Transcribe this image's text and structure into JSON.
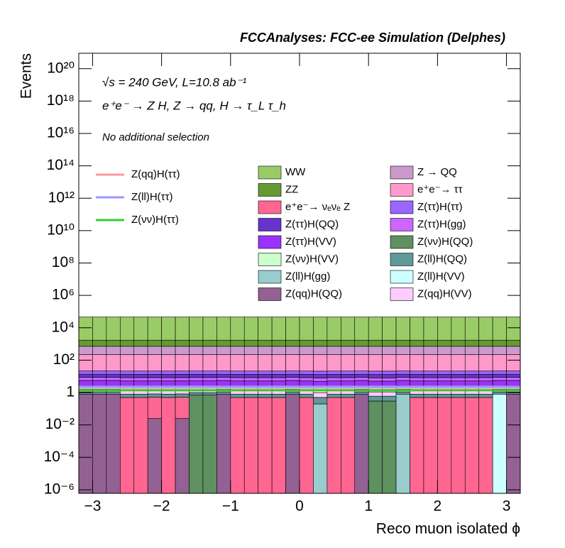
{
  "chart_data": {
    "type": "stacked_histogram",
    "title": "FCCAnalyses: FCC-ee Simulation (Delphes)",
    "annotations": [
      "√s = 240 GeV, L=10.8 ab⁻¹",
      "e⁺e⁻ → Z H, Z → qq, H → τ_L τ_h",
      "No additional selection"
    ],
    "x_label": "Reco muon isolated ϕ",
    "y_label": "Events",
    "log_y": true,
    "xlim": [
      -3.2,
      3.2
    ],
    "ylim": [
      6e-07,
      9e+20
    ],
    "xticks": [
      {
        "value": -3,
        "label": "−3"
      },
      {
        "value": -2,
        "label": "−2"
      },
      {
        "value": -1,
        "label": "−1"
      },
      0,
      1,
      2,
      3
    ],
    "yticks": [
      {
        "value": 1e-06,
        "label": "10⁻⁶"
      },
      {
        "value": 0.0001,
        "label": "10⁻⁴"
      },
      {
        "value": 0.01,
        "label": "10⁻²"
      },
      1,
      {
        "value": 100,
        "label": "10²"
      },
      {
        "value": 10000,
        "label": "10⁴"
      },
      {
        "value": 1000000.0,
        "label": "10⁶"
      },
      {
        "value": 100000000.0,
        "label": "10⁸"
      },
      {
        "value": 10000000000.0,
        "label": "10¹⁰"
      },
      {
        "value": 1000000000000.0,
        "label": "10¹²"
      },
      {
        "value": 100000000000000.0,
        "label": "10¹⁴"
      },
      {
        "value": 1e+16,
        "label": "10¹⁶"
      },
      {
        "value": 1e+18,
        "label": "10¹⁸"
      },
      {
        "value": 1e+20,
        "label": "10²⁰"
      }
    ],
    "bins": [
      -3.2,
      -3,
      -2.8,
      -2.6,
      -2.4,
      -2.2,
      -2,
      -1.8,
      -1.6,
      -1.4,
      -1.2,
      -1,
      -0.8,
      -0.6,
      -0.4,
      -0.2,
      0,
      0.2,
      0.4,
      0.6,
      0.8,
      1,
      1.2,
      1.4,
      1.6,
      1.8,
      2,
      2.2,
      2.4,
      2.6,
      2.8,
      3,
      3.2
    ],
    "series": [
      {
        "name": "Z(qq)H(QQ)",
        "color": "#936193",
        "values": [
          0.8,
          0.8,
          0.8,
          0,
          0,
          0.025,
          0,
          0.025,
          0,
          0,
          0.8,
          0,
          0,
          0,
          0,
          0.8,
          0,
          0,
          0,
          0,
          0.8,
          0,
          0,
          0,
          0,
          0,
          0,
          0,
          0,
          0,
          0,
          0.8
        ]
      },
      {
        "name": "e⁺e⁻→ νₑνₑ Z",
        "color": "#ff6692",
        "values": [
          0,
          0,
          0,
          0.5,
          0.5,
          0.5,
          0.5,
          0.5,
          0,
          0,
          0,
          0.5,
          0.5,
          0.5,
          0.5,
          0,
          0.5,
          0,
          0.5,
          0.5,
          0,
          0,
          0,
          0,
          0.5,
          0.5,
          0.5,
          0.5,
          0.5,
          0.5,
          0,
          0
        ]
      },
      {
        "name": "Z(νν)H(QQ)",
        "color": "#5f9060",
        "values": [
          0,
          0,
          0,
          0,
          0,
          0,
          0,
          0,
          0.7,
          0.7,
          0,
          0,
          0,
          0,
          0,
          0,
          0,
          0,
          0,
          0,
          0,
          0.3,
          0.3,
          0,
          0,
          0,
          0,
          0,
          0,
          0,
          0,
          0
        ]
      },
      {
        "name": "Z(ll)H(gg)",
        "color": "#99cccc",
        "values": [
          0,
          0,
          0,
          0,
          0,
          0,
          0,
          0,
          0,
          0,
          0,
          0,
          0,
          0,
          0,
          0,
          0,
          0.2,
          0,
          0,
          0,
          0,
          0,
          0.8,
          0,
          0,
          0,
          0,
          0,
          0,
          0,
          0
        ]
      },
      {
        "name": "Z(ll)H(VV)",
        "color": "#ccffff",
        "values": [
          0,
          0,
          0,
          0,
          0,
          0,
          0,
          0,
          0,
          0,
          0,
          0,
          0,
          0,
          0,
          0,
          0,
          0,
          0,
          0,
          0,
          0,
          0,
          0,
          0,
          0,
          0,
          0,
          0,
          0,
          0.8,
          0
        ]
      },
      {
        "name": "Z(ll)H(QQ)",
        "color": "#5f9999",
        "values": [
          0.3,
          0.3,
          0.3,
          0.3,
          0.3,
          0.3,
          0.3,
          0.3,
          0.3,
          0.3,
          0.3,
          0.3,
          0.3,
          0.3,
          0.3,
          0.3,
          0.3,
          0.3,
          0.3,
          0.3,
          0.3,
          0.3,
          0.3,
          0.3,
          0.3,
          0.3,
          0.3,
          0.3,
          0.3,
          0.3,
          0.3,
          0.3
        ]
      },
      {
        "name": "Z(qq)H(VV)",
        "color": "#ffccff",
        "values": [
          0.5,
          0.5,
          0.5,
          0.5,
          0.5,
          0.5,
          0.5,
          0.5,
          0.5,
          0.5,
          0.5,
          0.5,
          0.5,
          0.5,
          0.5,
          0.5,
          0.5,
          0.5,
          0.5,
          0.5,
          0.5,
          0.5,
          0.5,
          0.5,
          0.5,
          0.5,
          0.5,
          0.5,
          0.5,
          0.5,
          0.5,
          0.5
        ]
      },
      {
        "name": "Z(νν)H(VV)",
        "color": "#ccffcc",
        "values": [
          1,
          1,
          1,
          1,
          1,
          1,
          1,
          1,
          1,
          1,
          1,
          1,
          1,
          1,
          1,
          1,
          1,
          1,
          1,
          1,
          1,
          1,
          1,
          1,
          1,
          1,
          1,
          1,
          1,
          1,
          1,
          1
        ]
      },
      {
        "name": "Z(ττ)H(VV)",
        "color": "#9933ff",
        "values": [
          3,
          3,
          3,
          3,
          3,
          3,
          3,
          3,
          3,
          3,
          3,
          3,
          3,
          3,
          3,
          3,
          3,
          3,
          3,
          3,
          3,
          3,
          3,
          3,
          3,
          3,
          3,
          3,
          3,
          3,
          3,
          3
        ]
      },
      {
        "name": "Z(ττ)H(gg)",
        "color": "#cc66ff",
        "values": [
          3,
          3,
          3,
          3,
          3,
          3,
          3,
          3,
          3,
          3,
          3,
          3,
          3,
          3,
          3,
          3,
          3,
          3,
          3,
          3,
          3,
          3,
          3,
          3,
          3,
          3,
          3,
          3,
          3,
          3,
          3,
          3
        ]
      },
      {
        "name": "Z(ττ)H(QQ)",
        "color": "#6633cc",
        "values": [
          5,
          5,
          5,
          5,
          5,
          5,
          5,
          5,
          5,
          5,
          5,
          5,
          5,
          5,
          5,
          5,
          5,
          5,
          5,
          5,
          5,
          5,
          5,
          5,
          5,
          5,
          5,
          5,
          5,
          5,
          5,
          5
        ]
      },
      {
        "name": "Z(ττ)H(ττ)",
        "color": "#9966ff",
        "values": [
          8,
          8,
          8,
          8,
          8,
          8,
          8,
          8,
          8,
          8,
          8,
          8,
          8,
          8,
          8,
          8,
          8,
          8,
          8,
          8,
          8,
          8,
          8,
          8,
          8,
          8,
          8,
          8,
          8,
          8,
          8,
          8
        ]
      },
      {
        "name": "e⁺e⁻→ ττ",
        "color": "#ff99cc",
        "values": [
          200,
          200,
          200,
          200,
          200,
          200,
          200,
          200,
          200,
          200,
          200,
          200,
          200,
          200,
          200,
          200,
          200,
          200,
          200,
          200,
          200,
          200,
          200,
          200,
          200,
          200,
          200,
          200,
          200,
          200,
          200,
          200
        ]
      },
      {
        "name": "Z → QQ",
        "color": "#cc99cc",
        "values": [
          500,
          500,
          500,
          500,
          500,
          500,
          500,
          500,
          500,
          500,
          500,
          500,
          500,
          500,
          500,
          500,
          500,
          500,
          500,
          500,
          500,
          500,
          500,
          500,
          500,
          500,
          500,
          500,
          500,
          500,
          500,
          500
        ]
      },
      {
        "name": "ZZ",
        "color": "#669933",
        "values": [
          1000,
          1000,
          1000,
          1000,
          1000,
          1000,
          1000,
          1000,
          1000,
          1000,
          1000,
          1000,
          1000,
          1000,
          1000,
          1000,
          1000,
          1000,
          1000,
          1000,
          1000,
          1000,
          1000,
          1000,
          1000,
          1000,
          1000,
          1000,
          1000,
          1000,
          1000,
          1000
        ]
      },
      {
        "name": "WW",
        "color": "#99cc66",
        "values": [
          45000,
          45000,
          45000,
          45000,
          45000,
          45000,
          45000,
          45000,
          45000,
          45000,
          45000,
          45000,
          45000,
          45000,
          45000,
          45000,
          45000,
          45000,
          45000,
          45000,
          45000,
          45000,
          45000,
          45000,
          45000,
          45000,
          45000,
          45000,
          45000,
          45000,
          45000,
          45000
        ]
      }
    ],
    "overlays": [
      {
        "name": "Z(qq)H(ττ)",
        "color": "#ff9999",
        "values": [
          2,
          2,
          2,
          2,
          2,
          2,
          2,
          2,
          2,
          2,
          2,
          2,
          2,
          2,
          2,
          2,
          2,
          2,
          2,
          2,
          2,
          2,
          2,
          2,
          2,
          2,
          2,
          2,
          2,
          2,
          2,
          2
        ]
      },
      {
        "name": "Z(ll)H(ττ)",
        "color": "#9999ff",
        "values": [
          2.3,
          2.3,
          2.3,
          2.3,
          2.3,
          2.3,
          2.3,
          2.3,
          2.3,
          2.3,
          2.3,
          2.3,
          2.3,
          2.3,
          2.3,
          2.3,
          2.3,
          2.3,
          2.3,
          2.3,
          2.3,
          2.3,
          2.3,
          2.3,
          2.3,
          2.3,
          2.3,
          2.3,
          2.3,
          2.3,
          2.3,
          2.3
        ]
      },
      {
        "name": "Z(νν)H(ττ)",
        "color": "#33cc33",
        "values": [
          1.4,
          1.4,
          1.4,
          1.4,
          1.4,
          1.4,
          1.4,
          1.4,
          1.4,
          1.4,
          1.4,
          1.4,
          1.4,
          1.4,
          1.4,
          1.4,
          1.4,
          1.4,
          1.4,
          1.4,
          1.4,
          1.4,
          1.4,
          1.4,
          1.4,
          1.4,
          1.4,
          1.4,
          1.4,
          1.4,
          1.4,
          1.4
        ]
      }
    ]
  }
}
